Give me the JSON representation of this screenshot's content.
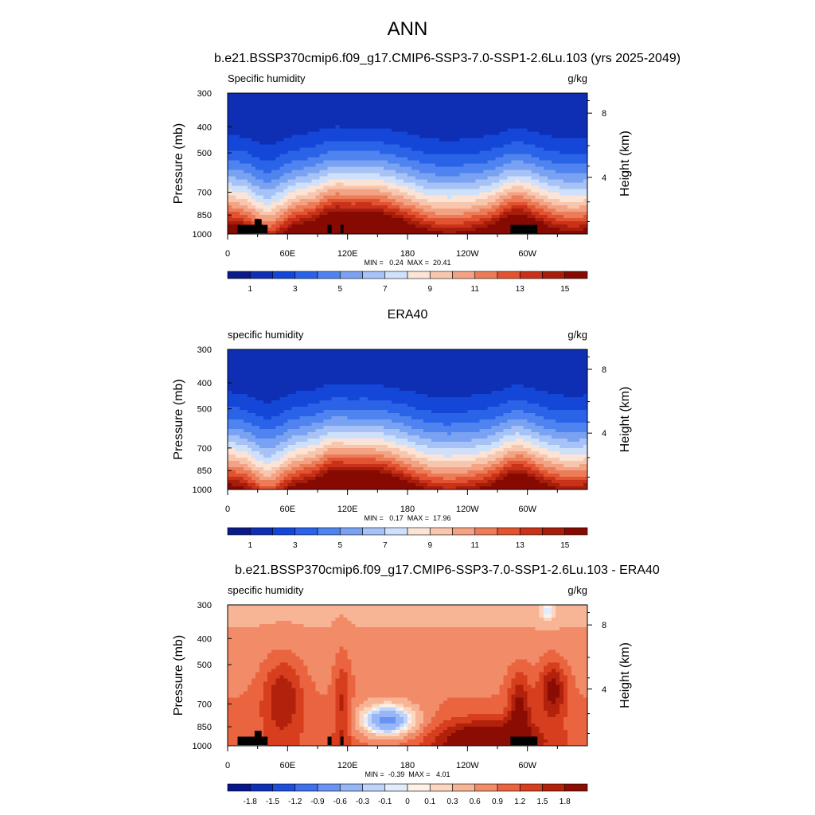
{
  "figure": {
    "title": "ANN"
  },
  "colors": {
    "model_scale": [
      "#0a1a86",
      "#0e2eb4",
      "#1446d8",
      "#2a62e8",
      "#4f84f0",
      "#7aa2f2",
      "#a6c2f6",
      "#cfe0fb",
      "#fbe4d6",
      "#f8c6ad",
      "#f3a384",
      "#ec7b58",
      "#e25431",
      "#c93219",
      "#a61d0c",
      "#860a02"
    ],
    "diff_scale": [
      "#08168c",
      "#0f2fb5",
      "#1d4fda",
      "#3e71ea",
      "#6993f2",
      "#97b6f6",
      "#c0d4f9",
      "#e3ecfd",
      "#fff1e6",
      "#fcd6bf",
      "#f8b596",
      "#f28c68",
      "#e9643f",
      "#d63e1e",
      "#b2210c",
      "#8a0c02"
    ],
    "topography": "#000000"
  },
  "chart_data": [
    {
      "type": "heatmap",
      "title": "b.e21.BSSP370cmip6.f09_g17.CMIP6-SSP3-7.0-SSP1-2.6Lu.103 (yrs 2025-2049)",
      "left_label": "Specific humidity",
      "right_label": "g/kg",
      "xlabel": "",
      "ylabel": "Pressure (mb)",
      "y2label": "Height (km)",
      "x_ticks": [
        "0",
        "60E",
        "120E",
        "180",
        "120W",
        "60W"
      ],
      "x_tick_lon": [
        0,
        60,
        120,
        180,
        240,
        300
      ],
      "xlim": [
        0,
        360
      ],
      "y_ticks": [
        "300",
        "400",
        "500",
        "700",
        "850",
        "1000"
      ],
      "y_tick_p": [
        300,
        400,
        500,
        700,
        850,
        1000
      ],
      "ylim": [
        1000,
        300
      ],
      "y2_ticks": [
        "8",
        "4"
      ],
      "y2_tick_p": [
        356,
        616
      ],
      "stats": "MIN =   0.24  MAX =  20.41",
      "colorbar_labels": [
        "1",
        "3",
        "5",
        "7",
        "9",
        "11",
        "13",
        "15"
      ],
      "colorbar_levels": [
        0,
        1,
        2,
        3,
        4,
        5,
        6,
        7,
        8,
        9,
        10,
        11,
        12,
        13,
        14,
        15
      ],
      "field": "model",
      "min": 0.24,
      "max": 20.41,
      "topography": true
    },
    {
      "type": "heatmap",
      "title": "ERA40",
      "left_label": "specific humidity",
      "right_label": "g/kg",
      "xlabel": "",
      "ylabel": "Pressure (mb)",
      "y2label": "Height (km)",
      "x_ticks": [
        "0",
        "60E",
        "120E",
        "180",
        "120W",
        "60W"
      ],
      "x_tick_lon": [
        0,
        60,
        120,
        180,
        240,
        300
      ],
      "xlim": [
        0,
        360
      ],
      "y_ticks": [
        "300",
        "400",
        "500",
        "700",
        "850",
        "1000"
      ],
      "y_tick_p": [
        300,
        400,
        500,
        700,
        850,
        1000
      ],
      "ylim": [
        1000,
        300
      ],
      "y2_ticks": [
        "8",
        "4"
      ],
      "y2_tick_p": [
        356,
        616
      ],
      "stats": "MIN =   0.17  MAX =  17.96",
      "colorbar_labels": [
        "1",
        "3",
        "5",
        "7",
        "9",
        "11",
        "13",
        "15"
      ],
      "colorbar_levels": [
        0,
        1,
        2,
        3,
        4,
        5,
        6,
        7,
        8,
        9,
        10,
        11,
        12,
        13,
        14,
        15
      ],
      "field": "obs",
      "min": 0.17,
      "max": 17.96,
      "topography": false
    },
    {
      "type": "heatmap",
      "title": "b.e21.BSSP370cmip6.f09_g17.CMIP6-SSP3-7.0-SSP1-2.6Lu.103 - ERA40",
      "left_label": "specific humidity",
      "right_label": "g/kg",
      "xlabel": "",
      "ylabel": "Pressure (mb)",
      "y2label": "Height (km)",
      "x_ticks": [
        "0",
        "60E",
        "120E",
        "180",
        "120W",
        "60W"
      ],
      "x_tick_lon": [
        0,
        60,
        120,
        180,
        240,
        300
      ],
      "xlim": [
        0,
        360
      ],
      "y_ticks": [
        "300",
        "400",
        "500",
        "700",
        "850",
        "1000"
      ],
      "y_tick_p": [
        300,
        400,
        500,
        700,
        850,
        1000
      ],
      "ylim": [
        1000,
        300
      ],
      "y2_ticks": [
        "8",
        "4"
      ],
      "y2_tick_p": [
        356,
        616
      ],
      "stats": "MIN =  -0.39  MAX =   4.01",
      "colorbar_labels": [
        "-1.8",
        "-1.5",
        "-1.2",
        "-0.9",
        "-0.6",
        "-0.3",
        "-0.1",
        "0",
        "0.1",
        "0.3",
        "0.6",
        "0.9",
        "1.2",
        "1.5",
        "1.8"
      ],
      "colorbar_levels": [
        -1.8,
        -1.5,
        -1.2,
        -0.9,
        -0.6,
        -0.3,
        -0.1,
        0,
        0.1,
        0.3,
        0.6,
        0.9,
        1.2,
        1.5,
        1.8
      ],
      "field": "diff",
      "min": -0.39,
      "max": 4.01,
      "topography": true
    }
  ]
}
